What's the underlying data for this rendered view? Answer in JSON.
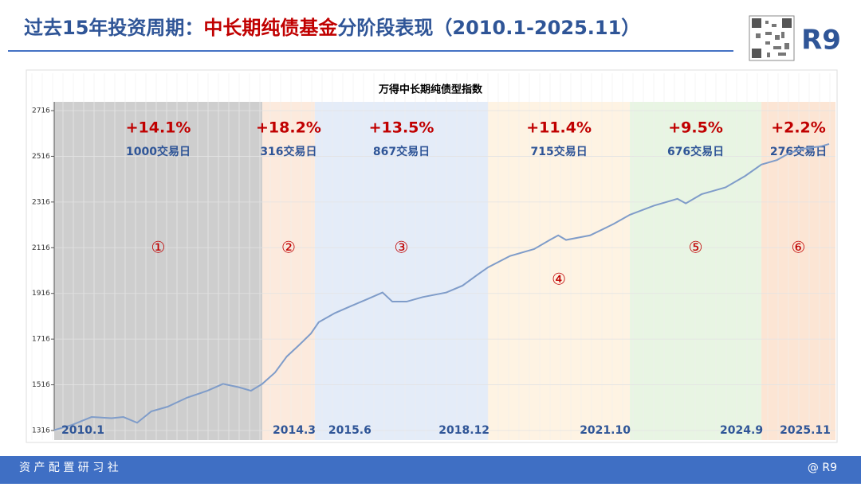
{
  "header": {
    "title_parts": [
      "过去15年投资周期：",
      "中长期纯债基金",
      "分阶段表现（2010.1-2025.11）"
    ],
    "logo": "R9"
  },
  "footer": {
    "left": "资 产 配 置 研 习 社",
    "right": "@ R9"
  },
  "chart_data": {
    "type": "line",
    "title": "万得中长期纯债型指数",
    "ylim": [
      1316,
      2716
    ],
    "yticks": [
      1316,
      1516,
      1716,
      1916,
      2116,
      2316,
      2516,
      2716
    ],
    "grid": true,
    "xlim": [
      2010.0,
      2025.92
    ],
    "boundaries": [
      {
        "value": 2010.0,
        "label": "2010.1"
      },
      {
        "value": 2014.24,
        "label": "2014.3"
      },
      {
        "value": 2015.31,
        "label": "2015.6"
      },
      {
        "value": 2018.84,
        "label": "2018.12"
      },
      {
        "value": 2021.73,
        "label": "2021.10"
      },
      {
        "value": 2024.41,
        "label": "2024.9"
      },
      {
        "value": 2025.92,
        "label": "2025.11"
      }
    ],
    "phases": [
      {
        "label": "①",
        "return": "+14.1%",
        "days": "1000交易日",
        "color": "#bdbdbd"
      },
      {
        "label": "②",
        "return": "+18.2%",
        "days": "316交易日",
        "color": "#fbe3d2"
      },
      {
        "label": "③",
        "return": "+13.5%",
        "days": "867交易日",
        "color": "#dbe5f6"
      },
      {
        "label": "④",
        "return": "+11.4%",
        "days": "715交易日",
        "color": "#fdefd9"
      },
      {
        "label": "⑤",
        "return": "+9.5%",
        "days": "676交易日",
        "color": "#e0f1da"
      },
      {
        "label": "⑥",
        "return": "+2.2%",
        "days": "276交易日",
        "color": "#fbdcc6"
      }
    ],
    "series": [
      {
        "color": "#7f9cc9",
        "x": [
          2010.0,
          2010.36,
          2010.76,
          2011.17,
          2011.41,
          2011.69,
          2011.98,
          2012.31,
          2012.71,
          2013.12,
          2013.44,
          2013.77,
          2014.01,
          2014.24,
          2014.5,
          2014.74,
          2014.99,
          2015.23,
          2015.39,
          2015.72,
          2016.04,
          2016.37,
          2016.69,
          2016.89,
          2017.18,
          2017.51,
          2017.99,
          2018.32,
          2018.64,
          2018.84,
          2019.29,
          2019.78,
          2020.1,
          2020.27,
          2020.43,
          2020.92,
          2021.4,
          2021.73,
          2022.22,
          2022.7,
          2022.87,
          2023.19,
          2023.68,
          2024.08,
          2024.41,
          2024.73,
          2024.98,
          2025.3,
          2025.63,
          2025.79
        ],
        "values": [
          1318,
          1340,
          1375,
          1370,
          1375,
          1350,
          1400,
          1420,
          1460,
          1490,
          1520,
          1505,
          1490,
          1520,
          1570,
          1640,
          1690,
          1740,
          1790,
          1830,
          1860,
          1890,
          1920,
          1880,
          1880,
          1900,
          1920,
          1950,
          2000,
          2030,
          2080,
          2110,
          2150,
          2170,
          2150,
          2170,
          2220,
          2260,
          2300,
          2330,
          2310,
          2350,
          2380,
          2430,
          2480,
          2500,
          2530,
          2550,
          2560,
          2570
        ]
      }
    ]
  }
}
